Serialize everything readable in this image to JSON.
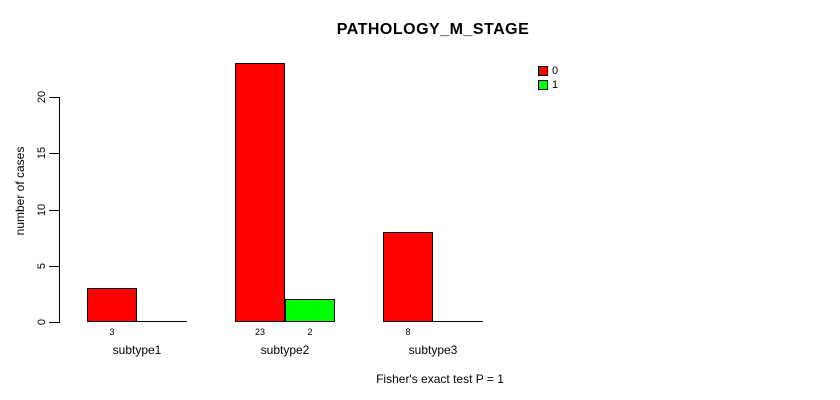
{
  "chart_data": {
    "type": "bar",
    "title": "PATHOLOGY_M_STAGE",
    "xlabel": "",
    "ylabel": "number of cases",
    "caption": "Fisher's exact test P = 1",
    "categories": [
      "subtype1",
      "subtype2",
      "subtype3"
    ],
    "series": [
      {
        "name": "0",
        "color": "#ff0000",
        "values": [
          3,
          23,
          8
        ]
      },
      {
        "name": "1",
        "color": "#00ff00",
        "values": [
          0,
          2,
          0
        ]
      }
    ],
    "yticks": [
      0,
      5,
      10,
      15,
      20
    ],
    "ylim": [
      0,
      23
    ],
    "grid": false,
    "legend_position": "top-right",
    "bar_border_color": "#000000",
    "axis_color": "#000000",
    "text_color": "#000000",
    "background_color": "#ffffff",
    "value_labels_shown_for_zero": false
  }
}
